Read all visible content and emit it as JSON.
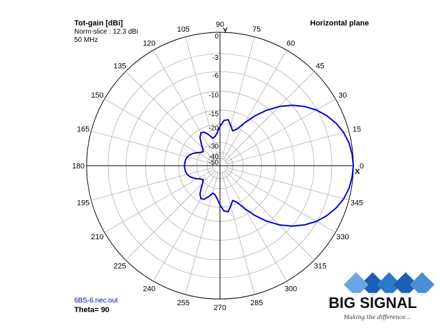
{
  "header": {
    "title": "Tot-gain [dBi]",
    "norm_slice": "Norm-slice : 12.3 dBi",
    "frequency": "50 MHz",
    "plane": "Horizontal plane"
  },
  "footer": {
    "file_name": "6BS-6.nec.out",
    "theta": "Theta= 90"
  },
  "logo": {
    "text": "BIG SIGNAL",
    "tagline": "Making the difference..."
  },
  "colors": {
    "pattern": "#0000cc",
    "grid": "#b0b0b0",
    "axes": "#000000",
    "file_label": "#0000cc",
    "logo_blue": "#1a5fb4"
  },
  "chart_data": {
    "type": "polar-line",
    "title": "Horizontal plane",
    "radial_axis": {
      "label": "Tot-gain [dBi]",
      "tick_labels": [
        "0",
        "-3",
        "-6",
        "-10",
        "-15",
        "-20",
        "-30",
        "-40",
        "-50"
      ],
      "rings_db": [
        0,
        -3,
        -6,
        -10,
        -15,
        -20,
        -30,
        -40,
        -50
      ]
    },
    "angular_axis": {
      "tick_labels": [
        "0",
        "15",
        "30",
        "45",
        "60",
        "75",
        "90",
        "105",
        "120",
        "135",
        "150",
        "165",
        "180",
        "195",
        "210",
        "225",
        "240",
        "255",
        "270",
        "285",
        "300",
        "315",
        "330",
        "345"
      ],
      "x_label": "X",
      "y_label": "Y"
    },
    "series": [
      {
        "angles_deg": [
          0,
          5,
          10,
          15,
          20,
          25,
          30,
          35,
          40,
          45,
          50,
          55,
          60,
          65,
          70,
          75,
          80,
          85,
          90,
          95,
          100,
          105,
          110,
          115,
          120,
          125,
          130,
          135,
          140,
          145,
          150,
          155,
          160,
          165,
          170,
          175,
          180
        ],
        "gain_db": [
          0,
          -0.1,
          -0.3,
          -0.7,
          -1.3,
          -2.1,
          -3.1,
          -4.4,
          -6,
          -8,
          -10.5,
          -13.5,
          -17,
          -20.5,
          -22,
          -20,
          -18,
          -18.5,
          -21,
          -24,
          -26,
          -26.5,
          -24,
          -22,
          -21.5,
          -23,
          -26,
          -29,
          -31,
          -30,
          -28,
          -26,
          -24.5,
          -23.5,
          -23,
          -22.8,
          -22.7
        ]
      }
    ]
  }
}
